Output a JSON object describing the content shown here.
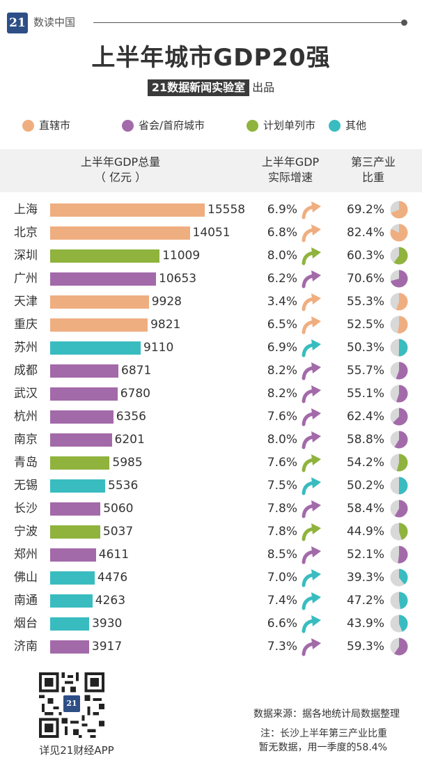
{
  "header": {
    "logo_text": "21",
    "brand": "数读中国",
    "title": "上半年城市GDP20强",
    "subtitle_badge": "21数据新闻实验室",
    "subtitle_tail": "出品"
  },
  "legend": [
    {
      "label": "直辖市",
      "color": "#efae80"
    },
    {
      "label": "省会/首府城市",
      "color": "#a36aa9"
    },
    {
      "label": "计划单列市",
      "color": "#8fb33d"
    },
    {
      "label": "其他",
      "color": "#39bcc0"
    }
  ],
  "table_header": {
    "col1_line1": "上半年GDP总量",
    "col1_line2": "（ 亿元 ）",
    "col2_line1": "上半年GDP",
    "col2_line2": "实际增速",
    "col3_line1": "第三产业",
    "col3_line2": "比重"
  },
  "chart_data": {
    "type": "bar",
    "orientation": "horizontal",
    "title": "上半年城市GDP20强",
    "categories": [
      "上海",
      "北京",
      "深圳",
      "广州",
      "天津",
      "重庆",
      "苏州",
      "成都",
      "武汉",
      "杭州",
      "南京",
      "青岛",
      "无锡",
      "长沙",
      "宁波",
      "郑州",
      "佛山",
      "南通",
      "烟台",
      "济南"
    ],
    "series": [
      {
        "name": "上半年GDP总量",
        "values": [
          15558,
          14051,
          11009,
          10653,
          9928,
          9821,
          9110,
          6871,
          6780,
          6356,
          6201,
          5985,
          5536,
          5060,
          5037,
          4611,
          4476,
          4263,
          3930,
          3917
        ]
      }
    ],
    "city_type": [
      "直辖市",
      "直辖市",
      "计划单列市",
      "省会/首府城市",
      "直辖市",
      "直辖市",
      "其他",
      "省会/首府城市",
      "省会/首府城市",
      "省会/首府城市",
      "省会/首府城市",
      "计划单列市",
      "其他",
      "省会/首府城市",
      "计划单列市",
      "省会/首府城市",
      "其他",
      "其他",
      "其他",
      "省会/首府城市"
    ],
    "growth_labels": [
      "6.9%",
      "6.8%",
      "8.0%",
      "6.2%",
      "3.4%",
      "6.5%",
      "6.9%",
      "8.2%",
      "8.2%",
      "7.6%",
      "8.0%",
      "7.6%",
      "7.5%",
      "7.8%",
      "7.8%",
      "8.5%",
      "7.0%",
      "7.4%",
      "6.6%",
      "7.3%"
    ],
    "tertiary_labels": [
      "69.2%",
      "82.4%",
      "60.3%",
      "70.6%",
      "55.3%",
      "52.5%",
      "50.3%",
      "55.7%",
      "55.1%",
      "62.4%",
      "58.8%",
      "54.2%",
      "50.2%",
      "58.4%",
      "44.9%",
      "52.1%",
      "39.3%",
      "47.2%",
      "43.9%",
      "59.3%"
    ],
    "tertiary_values": [
      69.2,
      82.4,
      60.3,
      70.6,
      55.3,
      52.5,
      50.3,
      55.7,
      55.1,
      62.4,
      58.8,
      54.2,
      50.2,
      58.4,
      44.9,
      52.1,
      39.3,
      47.2,
      43.9,
      59.3
    ],
    "legend_placement": "top"
  },
  "footer": {
    "qr_caption": "详见21财经APP",
    "source": "数据来源：据各地统计局数据整理",
    "note_line1": "注：长沙上半年第三产业比重",
    "note_line2": "暂无数据，用一季度的58.4%"
  }
}
